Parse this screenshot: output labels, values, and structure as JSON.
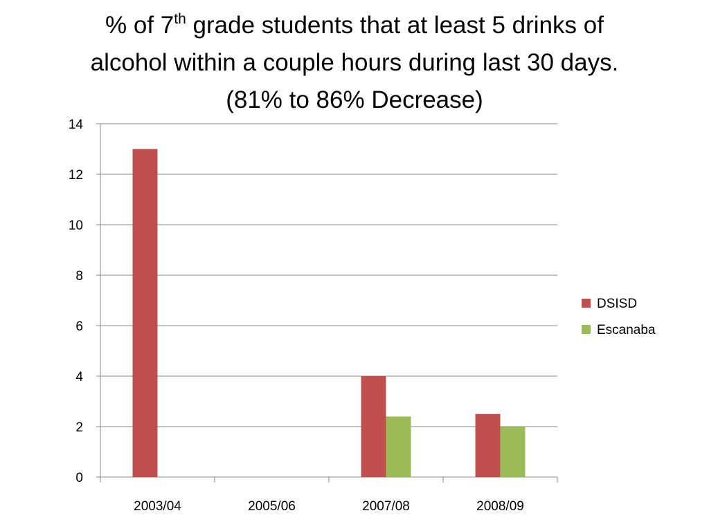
{
  "title": {
    "line1_prefix": "%  of 7",
    "line1_sup": "th",
    "line1_rest": " grade students that at least 5 drinks of",
    "line2": "alcohol within a couple hours during last 30 days.",
    "line3": "(81% to 86% Decrease)"
  },
  "chart_data": {
    "type": "bar",
    "title": "% of 7th grade students that at least 5 drinks of alcohol within a couple hours during last 30 days. (81% to 86% Decrease)",
    "categories": [
      "2003/04",
      "2005/06",
      "2007/08",
      "2008/09"
    ],
    "series": [
      {
        "name": "DSISD",
        "color": "#c0504d",
        "values": [
          13,
          null,
          4,
          2.5
        ]
      },
      {
        "name": "Escanaba",
        "color": "#9bbb59",
        "values": [
          null,
          null,
          2.4,
          2
        ]
      }
    ],
    "ylim": [
      0,
      14
    ],
    "yticks": [
      0,
      2,
      4,
      6,
      8,
      10,
      12,
      14
    ],
    "grid": true,
    "legend": "right"
  }
}
